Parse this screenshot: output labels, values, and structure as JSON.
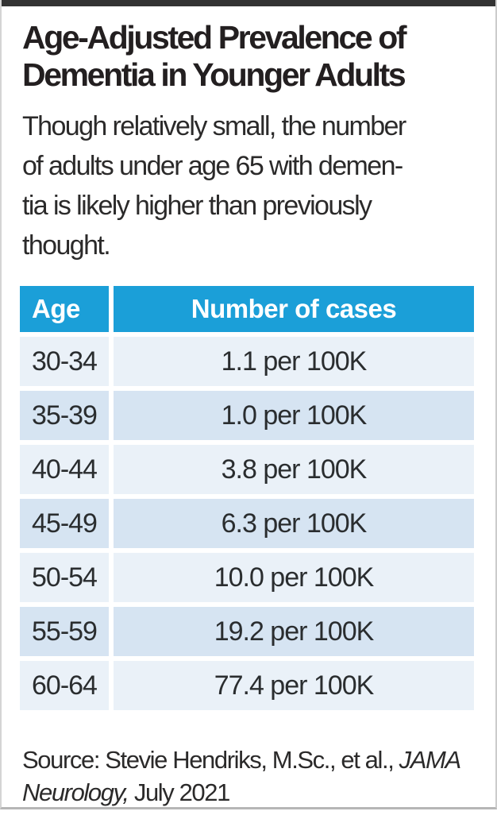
{
  "infographic": {
    "title": "Age-Adjusted Prevalence of\nDementia in Younger Adults",
    "description": "Though relatively small, the number\nof adults under age 65 with demen-\ntia is likely higher than previously\nthought.",
    "source": {
      "line1_regular": "Source: Stevie Hendriks, M.Sc., et al., ",
      "line1_italic": "JAMA",
      "line2_italic": "Neurology,",
      "line2_regular": " July 2021"
    }
  },
  "table": {
    "headers": {
      "age": "Age",
      "cases": "Number of cases"
    },
    "rows": [
      {
        "age": "30-34",
        "cases": "1.1 per 100K"
      },
      {
        "age": "35-39",
        "cases": "1.0 per 100K"
      },
      {
        "age": "40-44",
        "cases": "3.8 per 100K"
      },
      {
        "age": "45-49",
        "cases": "6.3 per 100K"
      },
      {
        "age": "50-54",
        "cases": "10.0 per 100K"
      },
      {
        "age": "55-59",
        "cases": "19.2 per 100K"
      },
      {
        "age": "60-64",
        "cases": "77.4 per 100K"
      }
    ]
  },
  "colors": {
    "header_blue": "#1b9fd8",
    "row_light": "#eaf1f8",
    "row_dark": "#d6e4f2",
    "text_dark": "#231f20",
    "top_bar": "#333333",
    "border_gray": "#c9c9c9"
  },
  "chart_data": {
    "type": "table",
    "title": "Age-Adjusted Prevalence of Dementia in Younger Adults",
    "subtitle": "Though relatively small, the number of adults under age 65 with dementia is likely higher than previously thought.",
    "columns": [
      "Age",
      "Number of cases"
    ],
    "categories": [
      "30-34",
      "35-39",
      "40-44",
      "45-49",
      "50-54",
      "55-59",
      "60-64"
    ],
    "values": [
      1.1,
      1.0,
      3.8,
      6.3,
      10.0,
      19.2,
      77.4
    ],
    "unit": "per 100K",
    "source": "Source: Stevie Hendriks, M.Sc., et al., JAMA Neurology, July 2021"
  }
}
